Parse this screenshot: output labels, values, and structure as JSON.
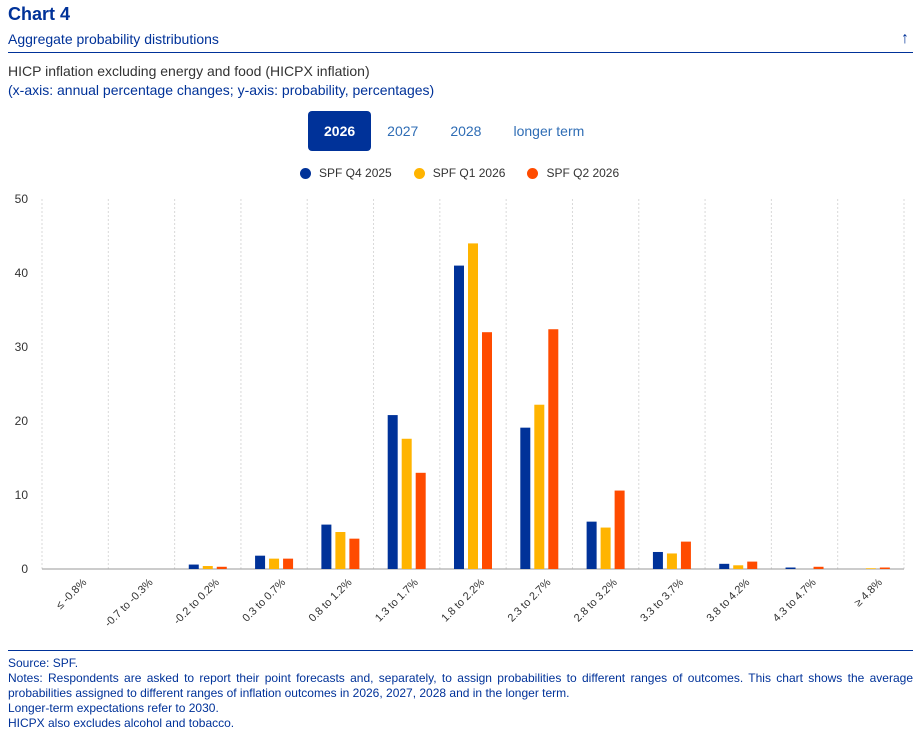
{
  "header": {
    "chart_number": "Chart 4",
    "title": "Aggregate probability distributions"
  },
  "subtitle": {
    "line1": "HICP inflation excluding energy and food (HICPX inflation)",
    "line2": "(x-axis: annual percentage changes; y-axis: probability, percentages)"
  },
  "tabs": [
    {
      "label": "2026",
      "active": true
    },
    {
      "label": "2027",
      "active": false
    },
    {
      "label": "2028",
      "active": false
    },
    {
      "label": "longer term",
      "active": false
    }
  ],
  "colors": {
    "SPF Q4 2025": "#003299",
    "SPF Q1 2026": "#ffb400",
    "SPF Q2 2026": "#ff4b00",
    "accent": "#003299"
  },
  "chart_data": {
    "type": "bar",
    "categories": [
      "≤ -0.8%",
      "-0.7 to -0.3%",
      "-0.2 to 0.2%",
      "0.3 to 0.7%",
      "0.8 to 1.2%",
      "1.3 to 1.7%",
      "1.8 to 2.2%",
      "2.3 to 2.7%",
      "2.8 to 3.2%",
      "3.3 to 3.7%",
      "3.8 to 4.2%",
      "4.3 to 4.7%",
      "≥ 4.8%"
    ],
    "series": [
      {
        "name": "SPF Q4 2025",
        "values": [
          0,
          0,
          0.6,
          1.8,
          6.0,
          20.8,
          41.0,
          19.1,
          6.4,
          2.3,
          0.7,
          0.2,
          0.0
        ]
      },
      {
        "name": "SPF Q1 2026",
        "values": [
          0,
          0,
          0.4,
          1.4,
          5.0,
          17.6,
          44.0,
          22.2,
          5.6,
          2.1,
          0.5,
          0.0,
          0.1
        ]
      },
      {
        "name": "SPF Q2 2026",
        "values": [
          0,
          0,
          0.3,
          1.4,
          4.1,
          13.0,
          32.0,
          32.4,
          10.6,
          3.7,
          1.0,
          0.3,
          0.2
        ]
      }
    ],
    "ylim": [
      0,
      50
    ],
    "yticks": [
      0,
      10,
      20,
      30,
      40,
      50
    ],
    "grid": "vertical",
    "legend_position": "top"
  },
  "footer": {
    "source": "Source: SPF.",
    "notes": "Notes: Respondents are asked to report their point forecasts and, separately, to assign probabilities to different ranges of outcomes. This chart shows the average probabilities assigned to different ranges of inflation outcomes in 2026, 2027, 2028 and in the longer term.",
    "note2": "Longer-term expectations refer to 2030.",
    "note3": "HICPX also excludes alcohol and tobacco."
  }
}
